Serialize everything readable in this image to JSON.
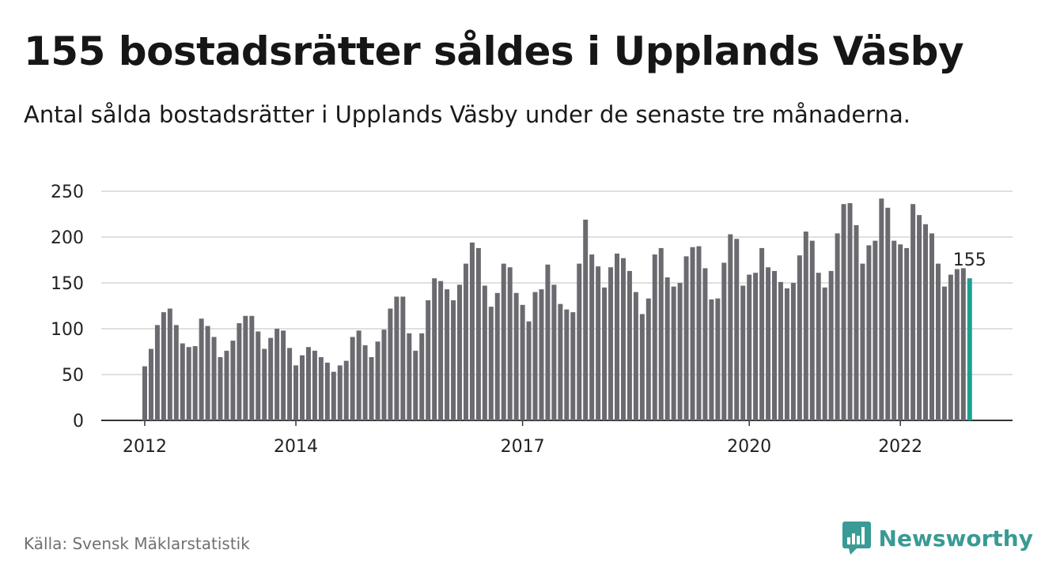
{
  "title": "155 bostadsrätter såldes i Upplands Väsby",
  "subtitle": "Antal sålda bostadsrätter i Upplands Väsby under de senaste tre månaderna.",
  "source": "Källa: Svensk Mäklarstatistik",
  "brand": "Newsworthy",
  "colors": {
    "bar": "#6b6a70",
    "highlight": "#1fa093",
    "grid": "#d6d6d6",
    "axis": "#333333",
    "brand": "#3a9a95"
  },
  "chart_data": {
    "type": "bar",
    "title": "155 bostadsrätter såldes i Upplands Väsby",
    "subtitle": "Antal sålda bostadsrätter i Upplands Väsby under de senaste tre månaderna.",
    "xlabel": "",
    "ylabel": "",
    "ylim": [
      0,
      250
    ],
    "yticks": [
      0,
      50,
      100,
      150,
      200,
      250
    ],
    "xticks": [
      {
        "label": "2012",
        "index": 0
      },
      {
        "label": "2014",
        "index": 24
      },
      {
        "label": "2017",
        "index": 60
      },
      {
        "label": "2020",
        "index": 96
      },
      {
        "label": "2022",
        "index": 120
      }
    ],
    "grid": "horizontal",
    "first_period": "2012-01",
    "frequency": "monthly",
    "values": [
      59,
      78,
      104,
      118,
      122,
      104,
      84,
      80,
      81,
      111,
      103,
      91,
      69,
      76,
      87,
      106,
      114,
      114,
      97,
      78,
      90,
      100,
      98,
      79,
      60,
      71,
      80,
      76,
      69,
      63,
      53,
      60,
      65,
      91,
      98,
      82,
      69,
      86,
      99,
      122,
      135,
      135,
      95,
      76,
      95,
      131,
      155,
      152,
      143,
      131,
      148,
      171,
      194,
      188,
      147,
      124,
      139,
      171,
      167,
      139,
      126,
      108,
      140,
      143,
      170,
      148,
      127,
      121,
      118,
      171,
      219,
      181,
      168,
      145,
      167,
      182,
      177,
      163,
      140,
      116,
      133,
      181,
      188,
      156,
      146,
      150,
      179,
      189,
      190,
      166,
      132,
      133,
      172,
      203,
      198,
      147,
      159,
      161,
      188,
      167,
      163,
      151,
      144,
      150,
      180,
      206,
      196,
      161,
      145,
      163,
      204,
      236,
      237,
      213,
      171,
      191,
      196,
      242,
      232,
      196,
      192,
      188,
      236,
      224,
      214,
      204,
      171,
      146,
      159,
      165,
      166,
      155
    ],
    "highlight_index": 131,
    "last_value_label": "155"
  }
}
